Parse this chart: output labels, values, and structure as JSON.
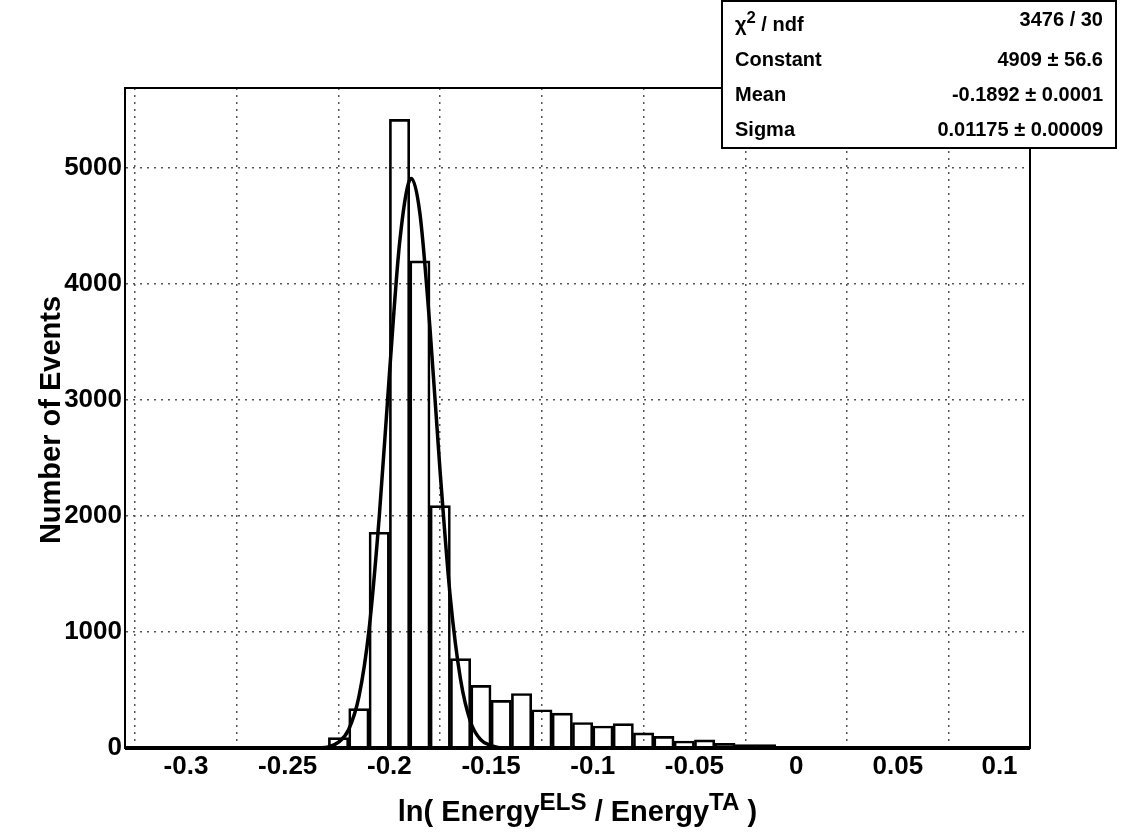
{
  "chart_data": {
    "type": "bar",
    "xlabel": "ln( Energy$^{ELS}$ / Energy$^{TA}$ )",
    "ylabel": "Number of Events",
    "xlim": [
      -0.33,
      0.115
    ],
    "xticks": [
      -0.3,
      -0.25,
      -0.2,
      -0.15,
      -0.1,
      -0.05,
      0,
      0.05,
      0.1
    ],
    "ylim": [
      0,
      5690
    ],
    "yticks": [
      0,
      1000,
      2000,
      3000,
      4000,
      5000
    ],
    "grid": true,
    "series": [
      {
        "type": "bar",
        "color": "#000000",
        "x": [
          -0.235,
          -0.225,
          -0.215,
          -0.205,
          -0.195,
          -0.185,
          -0.175,
          -0.165,
          -0.155,
          -0.145,
          -0.135,
          -0.125,
          -0.115,
          -0.105,
          -0.095,
          -0.085,
          -0.075,
          -0.065,
          -0.055,
          -0.045,
          -0.035,
          -0.025,
          -0.015
        ],
        "values": [
          10,
          90,
          340,
          1860,
          5420,
          4200,
          2090,
          770,
          540,
          410,
          470,
          330,
          300,
          220,
          190,
          210,
          130,
          100,
          60,
          70,
          40,
          30,
          30
        ]
      },
      {
        "type": "line",
        "color": "#000000",
        "x": [
          -0.235,
          -0.23,
          -0.225,
          -0.22,
          -0.215,
          -0.21,
          -0.205,
          -0.2,
          -0.195,
          -0.19,
          -0.1892,
          -0.185,
          -0.18,
          -0.175,
          -0.17,
          -0.165,
          -0.16,
          -0.155,
          -0.15,
          -0.145
        ],
        "values": [
          0,
          10,
          50,
          160,
          440,
          1020,
          1990,
          3220,
          4350,
          4900,
          4910,
          4610,
          3610,
          2370,
          1290,
          590,
          220,
          70,
          20,
          0
        ]
      }
    ],
    "annotations": [
      "χ$^{2}$ / ndf",
      "3476 / 30",
      "Constant",
      "4909 ± 56.6",
      "Mean",
      "-0.1892 ± 0.0001",
      "Sigma",
      "0.01175 ± 0.00009"
    ]
  }
}
